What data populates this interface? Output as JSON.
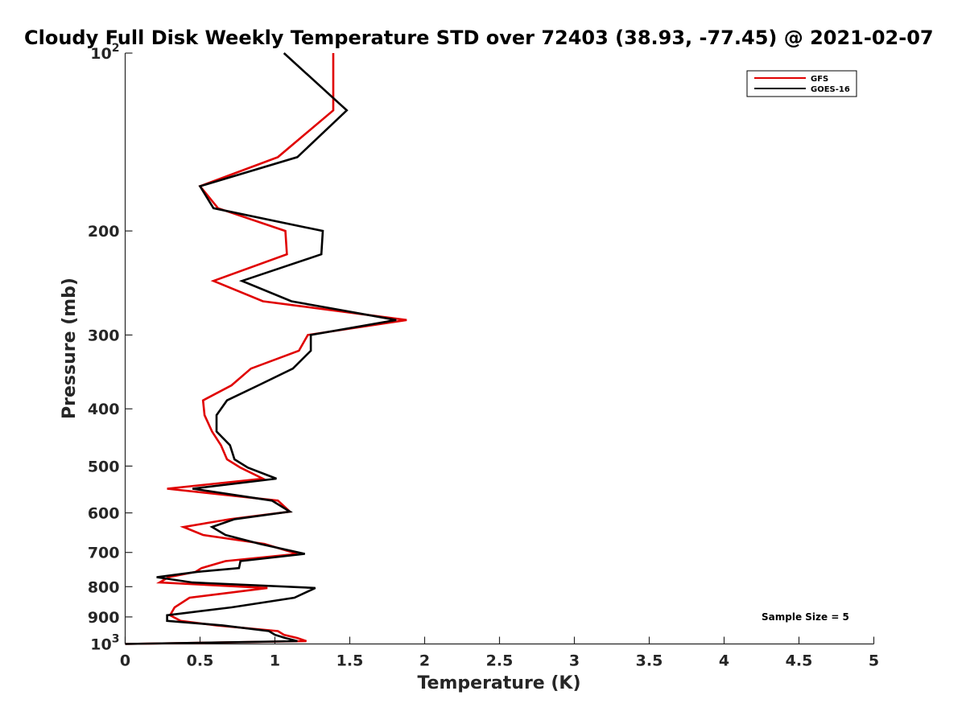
{
  "chart_data": {
    "type": "line",
    "title": "Cloudy Full Disk Weekly Temperature STD over 72403 (38.93, -77.45) @ 2021-02-07",
    "xlabel": "Temperature (K)",
    "ylabel": "Pressure (mb)",
    "xlim": [
      0,
      5
    ],
    "ylim": [
      100,
      1000
    ],
    "y_scale": "log",
    "y_reversed": true,
    "x_ticks": [
      "0",
      "0.5",
      "1",
      "1.5",
      "2",
      "2.5",
      "3",
      "3.5",
      "4",
      "4.5",
      "5"
    ],
    "x_tick_values": [
      0,
      0.5,
      1,
      1.5,
      2,
      2.5,
      3,
      3.5,
      4,
      4.5,
      5
    ],
    "y_ticks": [
      {
        "value": 100,
        "label": "10",
        "sup": "2"
      },
      {
        "value": 200,
        "label": "200"
      },
      {
        "value": 300,
        "label": "300"
      },
      {
        "value": 400,
        "label": "400"
      },
      {
        "value": 500,
        "label": "500"
      },
      {
        "value": 600,
        "label": "600"
      },
      {
        "value": 700,
        "label": "700"
      },
      {
        "value": 800,
        "label": "800"
      },
      {
        "value": 900,
        "label": "900"
      },
      {
        "value": 1000,
        "label": "10",
        "sup": "3"
      }
    ],
    "legend_position": "top-right",
    "annotation": "Sample Size = 5",
    "series": [
      {
        "name": "GFS",
        "color": "#e00000",
        "points": [
          [
            1.39,
            100
          ],
          [
            1.39,
            125
          ],
          [
            1.02,
            150
          ],
          [
            0.5,
            168
          ],
          [
            0.62,
            183
          ],
          [
            1.07,
            200
          ],
          [
            1.08,
            219
          ],
          [
            0.59,
            243
          ],
          [
            0.92,
            263
          ],
          [
            1.88,
            283
          ],
          [
            1.22,
            300
          ],
          [
            1.16,
            319
          ],
          [
            0.84,
            342
          ],
          [
            0.71,
            365
          ],
          [
            0.52,
            387
          ],
          [
            0.53,
            410
          ],
          [
            0.58,
            437
          ],
          [
            0.64,
            461
          ],
          [
            0.68,
            487
          ],
          [
            0.77,
            503
          ],
          [
            0.92,
            525
          ],
          [
            0.28,
            546
          ],
          [
            1.02,
            572
          ],
          [
            1.1,
            597
          ],
          [
            0.7,
            615
          ],
          [
            0.39,
            634
          ],
          [
            0.52,
            654
          ],
          [
            0.93,
            677
          ],
          [
            1.15,
            704
          ],
          [
            0.67,
            724
          ],
          [
            0.51,
            744
          ],
          [
            0.47,
            755
          ],
          [
            0.29,
            771
          ],
          [
            0.23,
            787
          ],
          [
            0.95,
            804
          ],
          [
            0.43,
            835
          ],
          [
            0.33,
            867
          ],
          [
            0.3,
            894
          ],
          [
            0.37,
            914
          ],
          [
            0.61,
            930
          ],
          [
            1.02,
            951
          ],
          [
            1.06,
            965
          ],
          [
            1.15,
            977
          ],
          [
            1.21,
            989
          ],
          [
            0,
            1000
          ]
        ]
      },
      {
        "name": "GOES-16",
        "color": "#000000",
        "points": [
          [
            1.06,
            100
          ],
          [
            1.48,
            125
          ],
          [
            1.15,
            150
          ],
          [
            0.5,
            168
          ],
          [
            0.59,
            183
          ],
          [
            1.32,
            200
          ],
          [
            1.31,
            219
          ],
          [
            0.78,
            243
          ],
          [
            1.11,
            263
          ],
          [
            1.81,
            283
          ],
          [
            1.24,
            300
          ],
          [
            1.24,
            319
          ],
          [
            1.12,
            342
          ],
          [
            0.89,
            365
          ],
          [
            0.68,
            387
          ],
          [
            0.61,
            410
          ],
          [
            0.61,
            437
          ],
          [
            0.7,
            461
          ],
          [
            0.73,
            487
          ],
          [
            0.82,
            503
          ],
          [
            1.01,
            525
          ],
          [
            0.45,
            546
          ],
          [
            0.98,
            572
          ],
          [
            1.1,
            597
          ],
          [
            0.73,
            615
          ],
          [
            0.58,
            634
          ],
          [
            0.67,
            654
          ],
          [
            0.9,
            677
          ],
          [
            1.2,
            704
          ],
          [
            0.77,
            724
          ],
          [
            0.76,
            744
          ],
          [
            0.48,
            755
          ],
          [
            0.21,
            771
          ],
          [
            0.45,
            787
          ],
          [
            1.27,
            804
          ],
          [
            1.13,
            835
          ],
          [
            0.71,
            867
          ],
          [
            0.28,
            894
          ],
          [
            0.28,
            914
          ],
          [
            0.65,
            930
          ],
          [
            0.96,
            951
          ],
          [
            1.0,
            965
          ],
          [
            1.07,
            977
          ],
          [
            1.15,
            989
          ],
          [
            0.0,
            1000
          ]
        ]
      }
    ]
  }
}
